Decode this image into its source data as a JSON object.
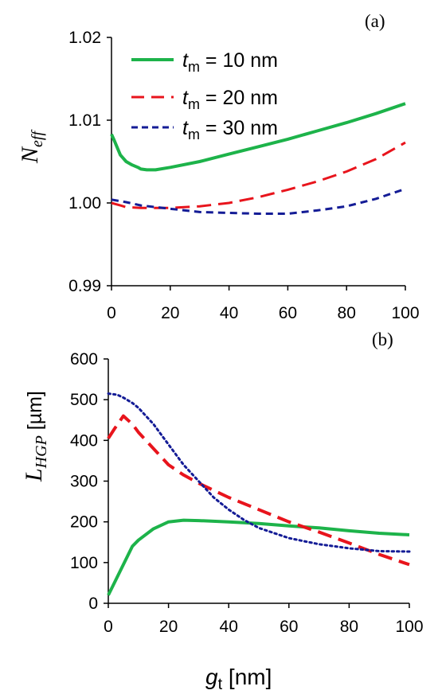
{
  "colors": {
    "green": "#1db34a",
    "red": "#e8141c",
    "blue": "#141c96",
    "axis": "#000000"
  },
  "chart_data": [
    {
      "panel_label": "(a)",
      "type": "line",
      "ylabel_main": "N",
      "ylabel_sub": "eff",
      "xlim": [
        0,
        100
      ],
      "ylim": [
        0.99,
        1.02
      ],
      "yticks": [
        "0.99",
        "1.00",
        "1.01",
        "1.02"
      ],
      "xticks": [
        "0",
        "20",
        "40",
        "60",
        "80",
        "100"
      ],
      "ytick_values": [
        0.99,
        1.0,
        1.01,
        1.02
      ],
      "xtick_values": [
        0,
        20,
        40,
        60,
        80,
        100
      ],
      "legend": [
        {
          "var": "t",
          "sub": "m",
          "text": " = 10 nm",
          "color": "green",
          "style": "solid"
        },
        {
          "var": "t",
          "sub": "m",
          "text": " = 20 nm",
          "color": "red",
          "style": "dashed"
        },
        {
          "var": "t",
          "sub": "m",
          "text": " = 30 nm",
          "color": "blue",
          "style": "short-dash"
        }
      ],
      "series": [
        {
          "key": "tm10",
          "color": "green",
          "style": "solid",
          "width": 4,
          "x": [
            0,
            1,
            3,
            5,
            7,
            9,
            10,
            12,
            15,
            20,
            30,
            40,
            50,
            60,
            70,
            80,
            90,
            100
          ],
          "y": [
            1.0083,
            1.0075,
            1.0058,
            1.005,
            1.0046,
            1.0043,
            1.0041,
            1.004,
            1.004,
            1.0043,
            1.005,
            1.0059,
            1.0068,
            1.0077,
            1.0087,
            1.0097,
            1.0108,
            1.012
          ]
        },
        {
          "key": "tm20",
          "color": "red",
          "style": "dashed",
          "width": 3,
          "x": [
            0,
            3,
            5,
            10,
            20,
            30,
            40,
            50,
            60,
            70,
            80,
            90,
            100
          ],
          "y": [
            1.0,
            0.9997,
            0.9995,
            0.9994,
            0.9994,
            0.9996,
            1.0,
            1.0007,
            1.0016,
            1.0026,
            1.0038,
            1.0053,
            1.0073
          ]
        },
        {
          "key": "tm30",
          "color": "blue",
          "style": "short-dash",
          "width": 3,
          "x": [
            0,
            5,
            10,
            20,
            30,
            40,
            50,
            60,
            70,
            80,
            90,
            100
          ],
          "y": [
            1.0004,
            1.0001,
            0.9997,
            0.9993,
            0.9989,
            0.9988,
            0.9987,
            0.9987,
            0.9991,
            0.9996,
            1.0005,
            1.0017
          ]
        }
      ]
    },
    {
      "panel_label": "(b)",
      "type": "line",
      "ylabel_main": "L",
      "ylabel_sub": "HGP",
      "ylabel_unit": " [µm]",
      "xlabel_var": "g",
      "xlabel_sub": "t",
      "xlabel_unit": " [nm]",
      "xlim": [
        0,
        100
      ],
      "ylim": [
        0,
        600
      ],
      "yticks": [
        "0",
        "100",
        "200",
        "300",
        "400",
        "500",
        "600"
      ],
      "xticks": [
        "0",
        "20",
        "40",
        "60",
        "80",
        "100"
      ],
      "ytick_values": [
        0,
        100,
        200,
        300,
        400,
        500,
        600
      ],
      "xtick_values": [
        0,
        20,
        40,
        60,
        80,
        100
      ],
      "series": [
        {
          "key": "tm10",
          "color": "green",
          "style": "solid",
          "width": 4,
          "x": [
            0,
            2,
            5,
            8,
            10,
            15,
            20,
            25,
            30,
            40,
            50,
            60,
            70,
            80,
            90,
            100
          ],
          "y": [
            20,
            50,
            95,
            140,
            155,
            183,
            200,
            204,
            203,
            200,
            196,
            190,
            185,
            178,
            172,
            168
          ]
        },
        {
          "key": "tm20",
          "color": "red",
          "style": "dashed",
          "width": 4,
          "x": [
            0,
            2,
            5,
            8,
            10,
            15,
            20,
            25,
            30,
            40,
            50,
            60,
            70,
            80,
            90,
            100
          ],
          "y": [
            405,
            428,
            460,
            440,
            420,
            380,
            340,
            315,
            295,
            260,
            230,
            200,
            175,
            148,
            120,
            95
          ]
        },
        {
          "key": "tm30",
          "color": "blue",
          "style": "dotted",
          "width": 3,
          "x": [
            0,
            3,
            5,
            8,
            10,
            15,
            20,
            25,
            30,
            35,
            40,
            45,
            50,
            60,
            70,
            80,
            90,
            100
          ],
          "y": [
            515,
            512,
            505,
            492,
            480,
            440,
            390,
            340,
            300,
            260,
            230,
            205,
            185,
            160,
            145,
            135,
            128,
            127
          ]
        }
      ]
    }
  ]
}
